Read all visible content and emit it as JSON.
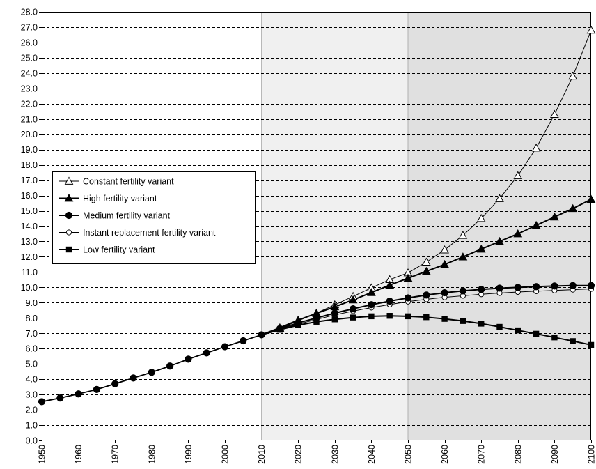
{
  "chart_data": {
    "type": "line",
    "title": "",
    "xlabel": "",
    "ylabel": "",
    "xlim": [
      1950,
      2100
    ],
    "ylim": [
      0,
      28
    ],
    "grid": "horizontal dashed",
    "legend_position": "left-center",
    "shaded_periods": [
      {
        "from": 2010,
        "to": 2050,
        "fill": "#f0f0f0"
      },
      {
        "from": 2050,
        "to": 2100,
        "fill": "#e0e0e0"
      }
    ],
    "x_ticks": [
      "1950",
      "1960",
      "1970",
      "1980",
      "1990",
      "2000",
      "2010",
      "2020",
      "2030",
      "2040",
      "2050",
      "2060",
      "2070",
      "2080",
      "2090",
      "2100"
    ],
    "y_ticks": [
      "0.0",
      "1.0",
      "2.0",
      "3.0",
      "4.0",
      "5.0",
      "6.0",
      "7.0",
      "8.0",
      "9.0",
      "10.0",
      "11.0",
      "12.0",
      "13.0",
      "14.0",
      "15.0",
      "16.0",
      "17.0",
      "18.0",
      "19.0",
      "20.0",
      "21.0",
      "22.0",
      "23.0",
      "24.0",
      "25.0",
      "26.0",
      "27.0",
      "28.0"
    ],
    "historical": {
      "x": [
        1950,
        1955,
        1960,
        1965,
        1970,
        1975,
        1980,
        1985,
        1990,
        1995,
        2000,
        2005,
        2010
      ],
      "values": [
        2.53,
        2.77,
        3.04,
        3.33,
        3.7,
        4.08,
        4.45,
        4.86,
        5.31,
        5.72,
        6.12,
        6.51,
        6.9
      ]
    },
    "projection_x": [
      2010,
      2015,
      2020,
      2025,
      2030,
      2035,
      2040,
      2045,
      2050,
      2055,
      2060,
      2065,
      2070,
      2075,
      2080,
      2085,
      2090,
      2095,
      2100
    ],
    "series": [
      {
        "name": "Constant fertility variant",
        "marker": "open-triangle",
        "values": [
          6.9,
          7.32,
          7.81,
          8.32,
          8.86,
          9.41,
          9.97,
          10.51,
          10.95,
          11.65,
          12.45,
          13.4,
          14.5,
          15.8,
          17.3,
          19.1,
          21.3,
          23.8,
          26.8
        ]
      },
      {
        "name": "High fertility variant",
        "marker": "filled-triangle",
        "values": [
          6.9,
          7.36,
          7.86,
          8.3,
          8.73,
          9.18,
          9.66,
          10.15,
          10.6,
          11.05,
          11.5,
          11.99,
          12.5,
          13.0,
          13.5,
          14.05,
          14.6,
          15.15,
          15.75
        ]
      },
      {
        "name": "Medium fertility variant",
        "marker": "filled-circle",
        "values": [
          6.9,
          7.3,
          7.68,
          8.0,
          8.32,
          8.6,
          8.87,
          9.1,
          9.31,
          9.5,
          9.65,
          9.77,
          9.87,
          9.95,
          10.0,
          10.05,
          10.09,
          10.12,
          10.12
        ]
      },
      {
        "name": "Instant replacement fertility variant",
        "marker": "open-circle",
        "values": [
          6.9,
          7.25,
          7.6,
          7.9,
          8.2,
          8.45,
          8.68,
          8.88,
          9.07,
          9.22,
          9.35,
          9.45,
          9.55,
          9.63,
          9.7,
          9.75,
          9.8,
          9.85,
          9.9
        ]
      },
      {
        "name": "Low fertility variant",
        "marker": "filled-square",
        "values": [
          6.9,
          7.23,
          7.53,
          7.75,
          7.91,
          8.03,
          8.11,
          8.14,
          8.11,
          8.05,
          7.94,
          7.8,
          7.63,
          7.42,
          7.19,
          6.97,
          6.73,
          6.49,
          6.24
        ]
      }
    ]
  }
}
